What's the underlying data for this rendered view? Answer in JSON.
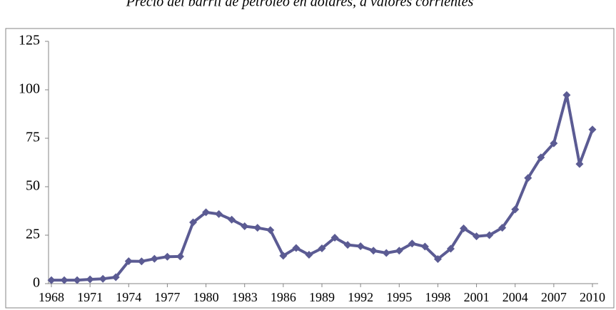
{
  "chart_data": {
    "type": "line",
    "title": "Precio del barril de petróleo en dólares, a valores corrientes",
    "x": [
      1968,
      1969,
      1970,
      1971,
      1972,
      1973,
      1974,
      1975,
      1976,
      1977,
      1978,
      1979,
      1980,
      1981,
      1982,
      1983,
      1984,
      1985,
      1986,
      1987,
      1988,
      1989,
      1990,
      1991,
      1992,
      1993,
      1994,
      1995,
      1996,
      1997,
      1998,
      1999,
      2000,
      2001,
      2002,
      2003,
      2004,
      2005,
      2006,
      2007,
      2008,
      2009,
      2010
    ],
    "series": [
      {
        "color": "#5b5b93",
        "values": [
          1.8,
          1.8,
          1.8,
          2.2,
          2.5,
          3.3,
          11.6,
          11.5,
          12.8,
          13.9,
          14.0,
          31.6,
          36.8,
          35.9,
          33.0,
          29.6,
          28.8,
          27.6,
          14.4,
          18.4,
          14.9,
          18.2,
          23.7,
          20.0,
          19.3,
          17.0,
          15.8,
          17.0,
          20.7,
          19.1,
          12.7,
          18.0,
          28.5,
          24.4,
          25.0,
          28.8,
          38.3,
          54.5,
          65.1,
          72.4,
          97.3,
          61.7,
          79.5
        ]
      }
    ],
    "xlim": [
      1968,
      2010
    ],
    "xticks": [
      1968,
      1971,
      1974,
      1977,
      1980,
      1983,
      1986,
      1989,
      1992,
      1995,
      1998,
      2001,
      2004,
      2007,
      2010
    ],
    "ylim": [
      0,
      125
    ],
    "yticks": [
      0,
      25,
      50,
      75,
      100,
      125
    ]
  }
}
